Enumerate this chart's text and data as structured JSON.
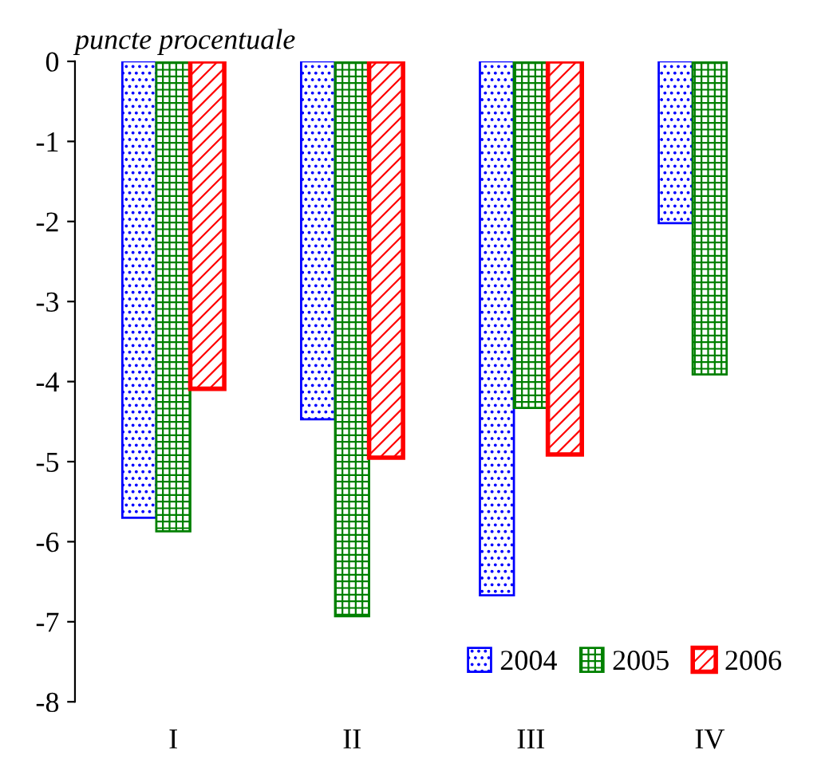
{
  "chart_data": {
    "type": "bar",
    "ylabel": "puncte procentuale",
    "categories": [
      "I",
      "II",
      "III",
      "IV"
    ],
    "series": [
      {
        "name": "2004",
        "color": "#0000ff",
        "values": [
          -5.7,
          -4.47,
          -6.67,
          -2.02
        ]
      },
      {
        "name": "2005",
        "color": "#008000",
        "values": [
          -5.87,
          -6.93,
          -4.33,
          -3.91
        ]
      },
      {
        "name": "2006",
        "color": "#ff0000",
        "values": [
          -4.09,
          -4.95,
          -4.91,
          null
        ]
      }
    ],
    "ylim": [
      -8,
      0
    ],
    "yticks": [
      -8,
      -7,
      -6,
      -5,
      -4,
      -3,
      -2,
      -1,
      0
    ],
    "grid": false,
    "legend": "bottom right"
  }
}
